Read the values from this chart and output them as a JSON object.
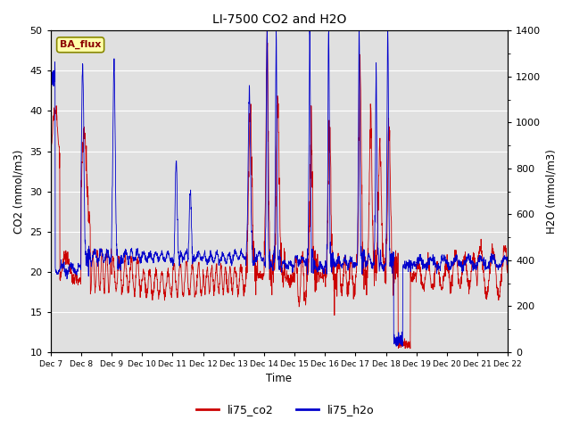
{
  "title": "LI-7500 CO2 and H2O",
  "ylabel_left": "CO2 (mmol/m3)",
  "ylabel_right": "H2O (mmol/m3)",
  "xlabel": "Time",
  "ylim_left": [
    10,
    50
  ],
  "ylim_right": [
    0,
    1400
  ],
  "yticks_left": [
    10,
    15,
    20,
    25,
    30,
    35,
    40,
    45,
    50
  ],
  "yticks_right": [
    0,
    200,
    400,
    600,
    800,
    1000,
    1200,
    1400
  ],
  "background_color": "#e0e0e0",
  "co2_color": "#cc0000",
  "h2o_color": "#0000cc",
  "legend_label_co2": "li75_co2",
  "legend_label_h2o": "li75_h2o",
  "annotation_text": "BA_flux",
  "annotation_bg": "#ffffaa",
  "annotation_border": "#999900",
  "tick_labels": [
    "Dec 7",
    "Dec 8",
    "Dec 9",
    "Dec 10",
    "Dec 11",
    "Dec 12",
    "Dec 13",
    "Dec 14",
    "Dec 15",
    "Dec 16",
    "Dec 17",
    "Dec 18",
    "Dec 19",
    "Dec 20",
    "Dec 21",
    "Dec 22"
  ]
}
